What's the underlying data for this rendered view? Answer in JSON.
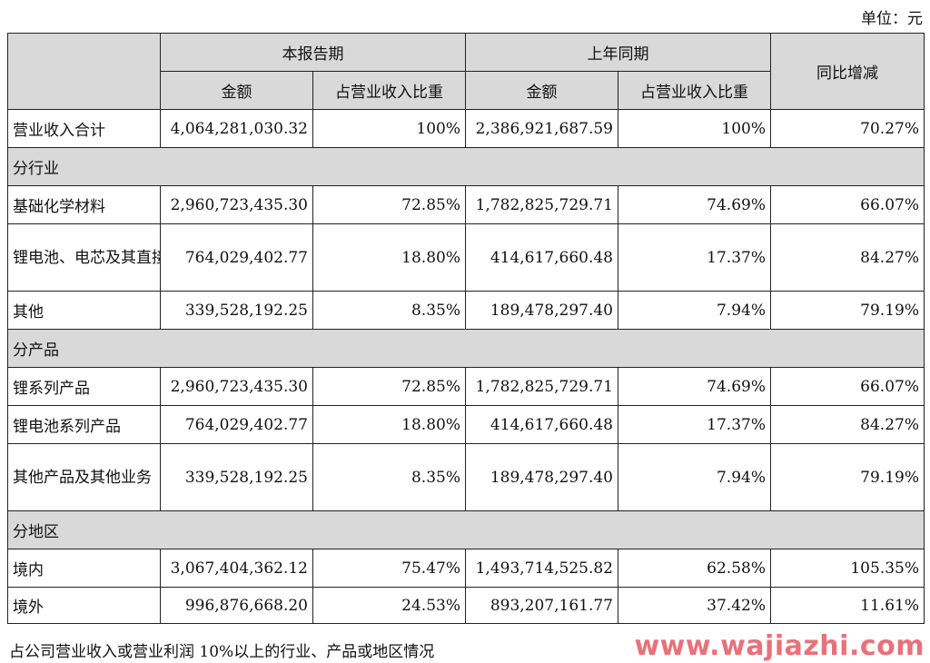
{
  "unit_label": "单位：元",
  "header": {
    "current_period": "本报告期",
    "prior_period": "上年同期",
    "yoy_change": "同比增减",
    "amount": "金额",
    "share_of_revenue": "占营业收入比重"
  },
  "total_row": {
    "label": "营业收入合计",
    "cur_amount": "4,064,281,030.32",
    "cur_share": "100%",
    "prev_amount": "2,386,921,687.59",
    "prev_share": "100%",
    "yoy": "70.27%"
  },
  "sections": {
    "industry": "分行业",
    "product": "分产品",
    "region": "分地区"
  },
  "industry_rows": [
    {
      "label": "基础化学材料",
      "cur_amount": "2,960,723,435.30",
      "cur_share": "72.85%",
      "prev_amount": "1,782,825,729.71",
      "prev_share": "74.69%",
      "yoy": "66.07%"
    },
    {
      "label": "锂电池、电芯及其直接材料",
      "cur_amount": "764,029,402.77",
      "cur_share": "18.80%",
      "prev_amount": "414,617,660.48",
      "prev_share": "17.37%",
      "yoy": "84.27%"
    },
    {
      "label": "其他",
      "cur_amount": "339,528,192.25",
      "cur_share": "8.35%",
      "prev_amount": "189,478,297.40",
      "prev_share": "7.94%",
      "yoy": "79.19%"
    }
  ],
  "product_rows": [
    {
      "label": "锂系列产品",
      "cur_amount": "2,960,723,435.30",
      "cur_share": "72.85%",
      "prev_amount": "1,782,825,729.71",
      "prev_share": "74.69%",
      "yoy": "66.07%"
    },
    {
      "label": "锂电池系列产品",
      "cur_amount": "764,029,402.77",
      "cur_share": "18.80%",
      "prev_amount": "414,617,660.48",
      "prev_share": "17.37%",
      "yoy": "84.27%"
    },
    {
      "label": "其他产品及其他业务",
      "cur_amount": "339,528,192.25",
      "cur_share": "8.35%",
      "prev_amount": "189,478,297.40",
      "prev_share": "7.94%",
      "yoy": "79.19%"
    }
  ],
  "region_rows": [
    {
      "label": "境内",
      "cur_amount": "3,067,404,362.12",
      "cur_share": "75.47%",
      "prev_amount": "1,493,714,525.82",
      "prev_share": "62.58%",
      "yoy": "105.35%"
    },
    {
      "label": "境外",
      "cur_amount": "996,876,668.20",
      "cur_share": "24.53%",
      "prev_amount": "893,207,161.77",
      "prev_share": "37.42%",
      "yoy": "11.61%"
    }
  ],
  "footnote": "占公司营业收入或营业利润 10%以上的行业、产品或地区情况",
  "watermark": "www.wajiazhi.com"
}
